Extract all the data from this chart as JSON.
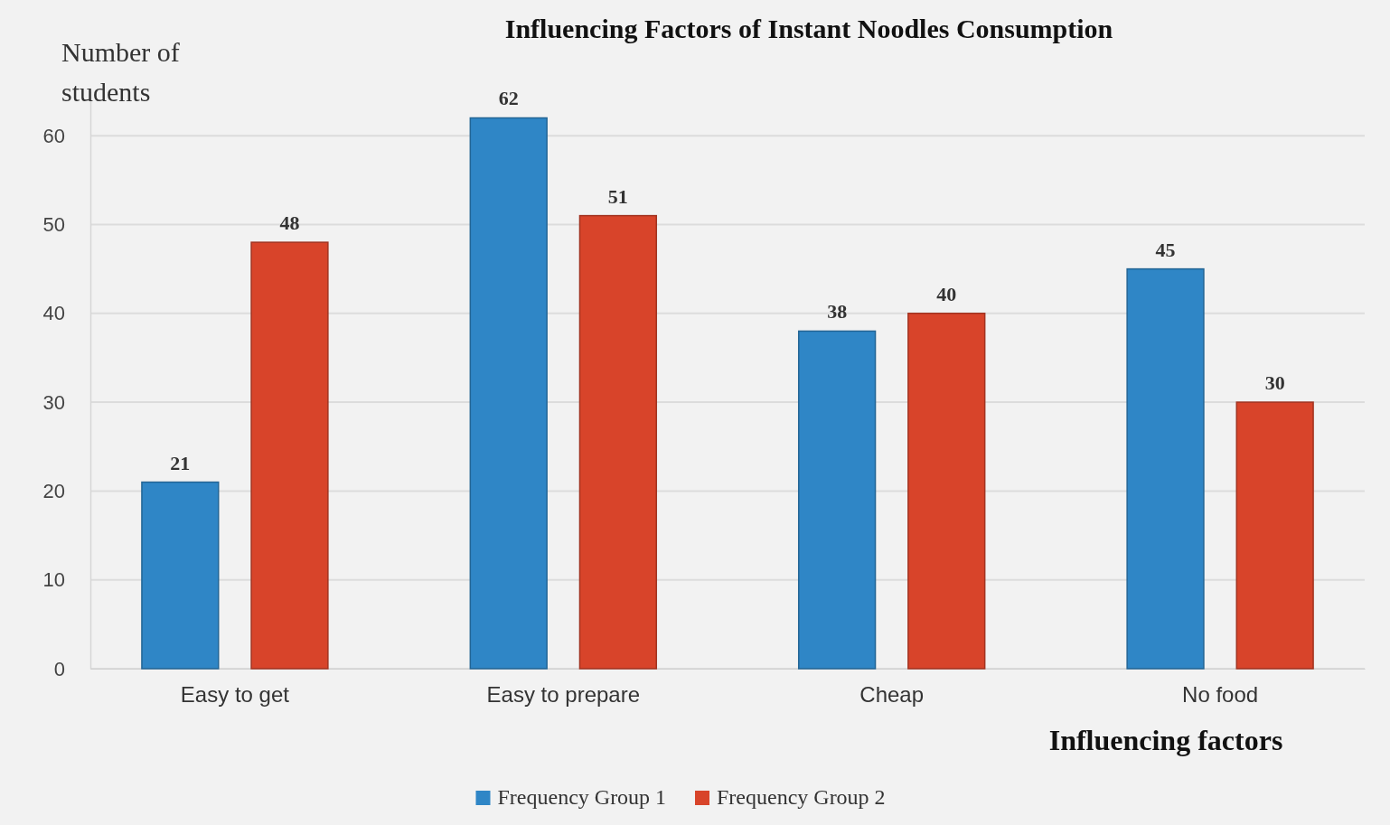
{
  "chart_data": {
    "type": "bar",
    "title": "Influencing Factors of Instant Noodles Consumption",
    "xlabel": "Influencing factors",
    "ylabel": "Number of students",
    "categories": [
      "Easy to get",
      "Easy to prepare",
      "Cheap",
      "No food"
    ],
    "series": [
      {
        "name": "Frequency Group 1",
        "color": "#2f86c6",
        "values": [
          21,
          62,
          38,
          45
        ]
      },
      {
        "name": "Frequency Group 2",
        "color": "#d8442a",
        "values": [
          48,
          51,
          40,
          30
        ]
      }
    ],
    "ylim": [
      0,
      65
    ],
    "yticks": [
      0,
      10,
      20,
      30,
      40,
      50,
      60
    ],
    "grid": "y",
    "legend": "bottom",
    "data_labels": true
  }
}
